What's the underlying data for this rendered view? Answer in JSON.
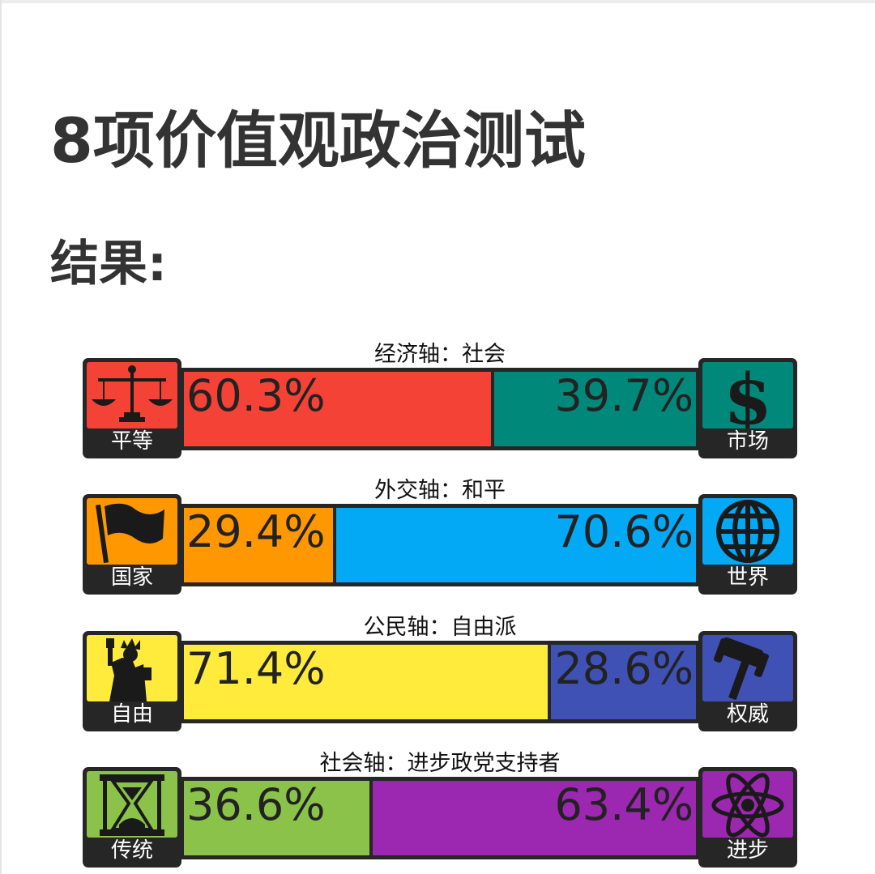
{
  "page": {
    "title": "8项价值观政治测试",
    "subtitle": "结果:"
  },
  "chart_data": {
    "type": "bar",
    "axes": [
      {
        "label": "经济轴：社会",
        "left": {
          "caption": "平等",
          "percent": "60.3%",
          "value": 60.3,
          "color": "#f44336",
          "icon": "scales-icon"
        },
        "right": {
          "caption": "市场",
          "percent": "39.7%",
          "value": 39.7,
          "color": "#00897b",
          "icon": "dollar-icon"
        }
      },
      {
        "label": "外交轴：和平",
        "left": {
          "caption": "国家",
          "percent": "29.4%",
          "value": 29.4,
          "color": "#ff9800",
          "icon": "flag-icon"
        },
        "right": {
          "caption": "世界",
          "percent": "70.6%",
          "value": 70.6,
          "color": "#03a9f4",
          "icon": "globe-icon"
        }
      },
      {
        "label": "公民轴：自由派",
        "left": {
          "caption": "自由",
          "percent": "71.4%",
          "value": 71.4,
          "color": "#ffeb3b",
          "icon": "statue-of-liberty-icon"
        },
        "right": {
          "caption": "权威",
          "percent": "28.6%",
          "value": 28.6,
          "color": "#3f51b5",
          "icon": "gavel-icon"
        }
      },
      {
        "label": "社会轴：进步政党支持者",
        "left": {
          "caption": "传统",
          "percent": "36.6%",
          "value": 36.6,
          "color": "#8bc34a",
          "icon": "hourglass-icon"
        },
        "right": {
          "caption": "进步",
          "percent": "63.4%",
          "value": 63.4,
          "color": "#9c27b0",
          "icon": "atom-icon"
        }
      }
    ]
  }
}
